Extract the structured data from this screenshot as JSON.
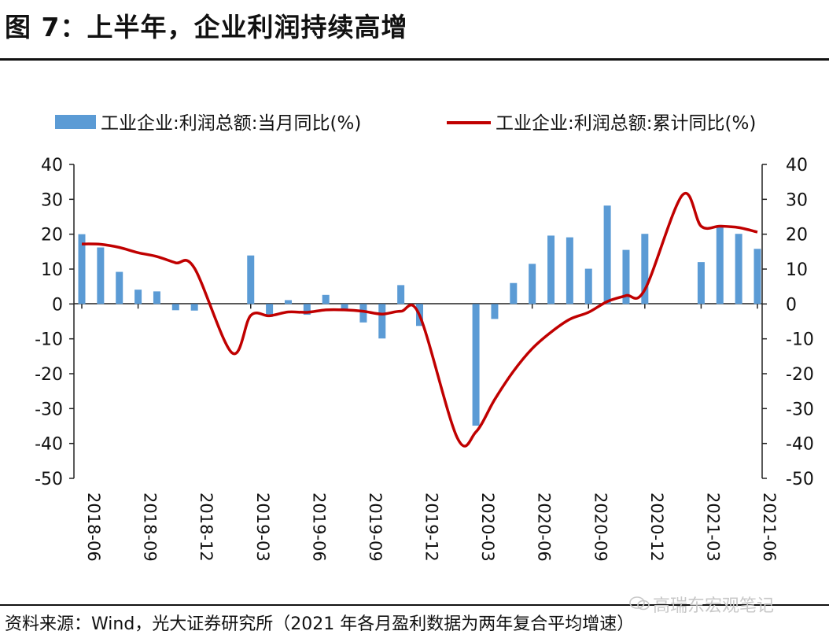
{
  "figure": {
    "title": "图 7：上半年，企业利润持续高增",
    "source": "资料来源：Wind，光大证券研究所（2021 年各月盈利数据为两年复合平均增速）",
    "watermark": "高瑞东宏观笔记"
  },
  "chart_data": {
    "type": "bar+line",
    "title": "图 7：上半年，企业利润持续高增",
    "colors": {
      "bar": "#5b9bd5",
      "line": "#c00000"
    },
    "legend": [
      "工业企业:利润总额:当月同比(%)",
      "工业企业:利润总额:累计同比(%)"
    ],
    "legend_position": "top",
    "ylim_left": [
      -50,
      40
    ],
    "ylim_right": [
      -50,
      40
    ],
    "y_ticks": [
      "40",
      "30",
      "20",
      "10",
      "0",
      "-10",
      "-20",
      "-30",
      "-40",
      "-50"
    ],
    "x": [
      "2018-06",
      "2018-07",
      "2018-08",
      "2018-09",
      "2018-10",
      "2018-11",
      "2018-12",
      "2019-01",
      "2019-02",
      "2019-03",
      "2019-04",
      "2019-05",
      "2019-06",
      "2019-07",
      "2019-08",
      "2019-09",
      "2019-10",
      "2019-11",
      "2019-12",
      "2020-01",
      "2020-02",
      "2020-03",
      "2020-04",
      "2020-05",
      "2020-06",
      "2020-07",
      "2020-08",
      "2020-09",
      "2020-10",
      "2020-11",
      "2020-12",
      "2021-01",
      "2021-02",
      "2021-03",
      "2021-04",
      "2021-05",
      "2021-06"
    ],
    "x_tick_labels": [
      "2018-06",
      "2018-09",
      "2018-12",
      "2019-03",
      "2019-06",
      "2019-09",
      "2019-12",
      "2020-03",
      "2020-06",
      "2020-09",
      "2020-12",
      "2021-03",
      "2021-06"
    ],
    "series": [
      {
        "name": "工业企业:利润总额:当月同比(%)",
        "type": "bar",
        "values": [
          20.0,
          16.2,
          9.2,
          4.1,
          3.6,
          -1.8,
          -1.9,
          null,
          null,
          13.9,
          -3.7,
          1.1,
          -3.1,
          2.6,
          -2.0,
          -5.3,
          -9.9,
          5.4,
          -6.3,
          null,
          null,
          -34.9,
          -4.3,
          6.0,
          11.5,
          19.6,
          19.1,
          10.1,
          28.2,
          15.5,
          20.1,
          null,
          null,
          12.0,
          22.0,
          20.1,
          15.8
        ]
      },
      {
        "name": "工业企业:利润总额:累计同比(%)",
        "type": "line",
        "values": [
          17.2,
          17.1,
          16.2,
          14.7,
          13.6,
          11.8,
          10.3,
          null,
          -14.0,
          -3.3,
          -3.4,
          -2.3,
          -2.4,
          -1.7,
          -1.7,
          -2.1,
          -2.9,
          -2.1,
          -3.3,
          null,
          -38.3,
          -36.7,
          -27.4,
          -19.3,
          -12.8,
          -8.1,
          -4.4,
          -2.4,
          0.7,
          2.4,
          4.1,
          null,
          31.2,
          22.3,
          22.3,
          21.9,
          20.6
        ]
      }
    ]
  }
}
